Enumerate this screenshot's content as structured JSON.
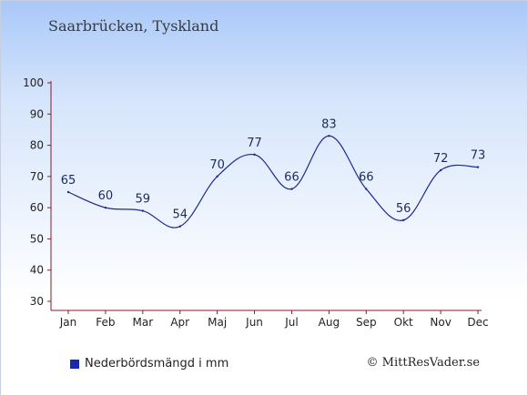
{
  "header": {
    "title": "Saarbrücken, Tyskland"
  },
  "legend": {
    "label": "Nederbördsmängd i mm",
    "swatch_color": "#1a2ab0"
  },
  "footer": {
    "credit": "© MittResVader.se"
  },
  "chart_data": {
    "type": "line",
    "categories": [
      "Jan",
      "Feb",
      "Mar",
      "Apr",
      "Maj",
      "Jun",
      "Jul",
      "Aug",
      "Sep",
      "Okt",
      "Nov",
      "Dec"
    ],
    "series": [
      {
        "values": [
          65,
          60,
          59,
          54,
          70,
          77,
          66,
          83,
          66,
          56,
          72,
          73
        ],
        "color": "#1d2b8c"
      }
    ],
    "ylim": [
      30,
      100
    ],
    "yticks": [
      30,
      40,
      50,
      60,
      70,
      80,
      90,
      100
    ],
    "data_labels": true,
    "grid": false
  }
}
